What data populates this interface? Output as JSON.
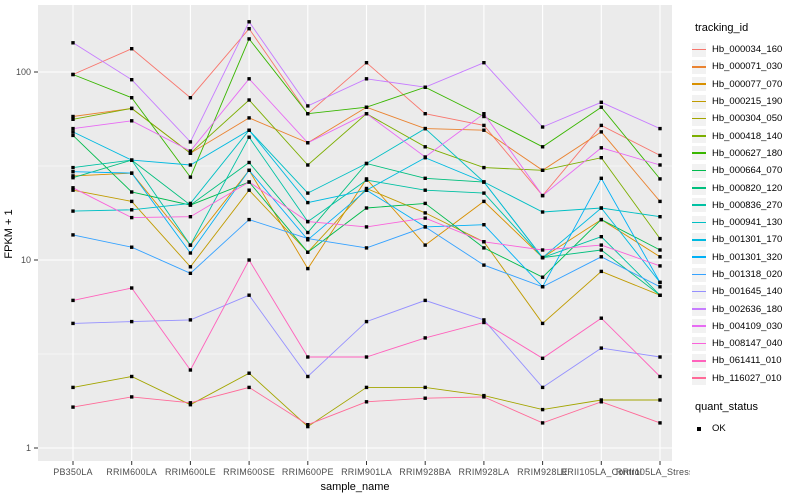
{
  "chart_data": {
    "type": "line",
    "title": "",
    "xlabel": "sample_name",
    "ylabel": "FPKM + 1",
    "x_categories": [
      "PB350LA",
      "RRIM600LA",
      "RRIM600LE",
      "RRIM600SE",
      "RRIM600PE",
      "RRIM901LA",
      "RRIM928BA",
      "RRIM928LA",
      "RRIM928LE",
      "RRII105LA_Control",
      "RRII105LA_Stressed"
    ],
    "y_scale": "log10",
    "y_ticks": [
      1,
      10,
      100
    ],
    "y_minor_ticks": [
      3.162,
      31.62
    ],
    "ylim": [
      1,
      230
    ],
    "grid": true,
    "legend_position": "right",
    "point_shape": "filled-black-square",
    "series": [
      {
        "name": "Hb_000034_160",
        "color": "#F8766D",
        "values": [
          97,
          133,
          73,
          170,
          60,
          112,
          60,
          52,
          22,
          52,
          36
        ]
      },
      {
        "name": "Hb_000071_030",
        "color": "#EA8331",
        "values": [
          58,
          64,
          37,
          57,
          42,
          65,
          50,
          49,
          30,
          48,
          20.5
        ]
      },
      {
        "name": "Hb_000077_070",
        "color": "#D89000",
        "values": [
          28,
          29,
          12,
          30,
          9,
          27,
          12,
          20.5,
          10.3,
          16.4,
          10.4
        ]
      },
      {
        "name": "Hb_000215_190",
        "color": "#C09B00",
        "values": [
          23.5,
          20.5,
          9.2,
          23.5,
          11,
          24,
          17.8,
          12.5,
          4.6,
          8.7,
          6.5
        ]
      },
      {
        "name": "Hb_000304_050",
        "color": "#A3A500",
        "values": [
          2.1,
          2.4,
          1.7,
          2.5,
          1.3,
          2.1,
          2.1,
          1.9,
          1.6,
          1.8,
          1.8
        ]
      },
      {
        "name": "Hb_000418_140",
        "color": "#7CAE00",
        "values": [
          56,
          64,
          37,
          71,
          32,
          60,
          40,
          31,
          30,
          35,
          13
        ]
      },
      {
        "name": "Hb_000627_180",
        "color": "#39B600",
        "values": [
          97,
          73,
          27.6,
          150,
          60,
          65,
          83,
          58,
          40,
          65,
          27
        ]
      },
      {
        "name": "Hb_000664_070",
        "color": "#00BB4E",
        "values": [
          46,
          23,
          19.6,
          26,
          11,
          18.9,
          20,
          11.6,
          8.1,
          16.4,
          11.3
        ]
      },
      {
        "name": "Hb_000820_120",
        "color": "#00BF7D",
        "values": [
          27.4,
          34,
          19.6,
          33,
          14,
          32.6,
          27.2,
          26,
          10.3,
          11.3,
          6.5
        ]
      },
      {
        "name": "Hb_000836_270",
        "color": "#00C1A3",
        "values": [
          31,
          34,
          12,
          45,
          16,
          26.6,
          23.5,
          22.7,
          10.3,
          13.3,
          6.5
        ]
      },
      {
        "name": "Hb_000941_130",
        "color": "#00BFC4",
        "values": [
          18.2,
          18.5,
          20,
          49,
          22.7,
          32.6,
          50,
          26,
          18,
          18.9,
          17
        ]
      },
      {
        "name": "Hb_001301_170",
        "color": "#00BAE0",
        "values": [
          48,
          34,
          32,
          49,
          20.2,
          23.5,
          35,
          26,
          10.3,
          18.9,
          7.6
        ]
      },
      {
        "name": "Hb_001301_320",
        "color": "#00B0F6",
        "values": [
          29.5,
          29,
          10.9,
          30,
          12.8,
          23.5,
          15,
          15.4,
          7.2,
          27.2,
          7.6
        ]
      },
      {
        "name": "Hb_001318_020",
        "color": "#35A2FF",
        "values": [
          13.6,
          11.7,
          8.5,
          16.4,
          13,
          11.6,
          15,
          9.4,
          7.2,
          10.4,
          7.2
        ]
      },
      {
        "name": "Hb_001645_140",
        "color": "#9590FF",
        "values": [
          4.6,
          4.7,
          4.8,
          6.5,
          2.4,
          4.7,
          6.1,
          4.8,
          2.1,
          3.4,
          3.05
        ]
      },
      {
        "name": "Hb_002636_180",
        "color": "#C77CFF",
        "values": [
          143,
          91,
          42.5,
          185,
          66,
          92,
          83,
          112,
          51,
          69,
          50
        ]
      },
      {
        "name": "Hb_004109_030",
        "color": "#E76BF3",
        "values": [
          50,
          55,
          38,
          92,
          42,
          60,
          35.3,
          60,
          22,
          39.5,
          32
        ]
      },
      {
        "name": "Hb_008147_040",
        "color": "#FA62DB",
        "values": [
          24.2,
          16.8,
          17,
          26,
          16,
          15,
          16.7,
          12.5,
          11.3,
          12,
          9.3
        ]
      },
      {
        "name": "Hb_061411_010",
        "color": "#FF62BC",
        "values": [
          6.1,
          7.1,
          2.6,
          10,
          3.05,
          3.05,
          3.85,
          4.65,
          3.0,
          4.9,
          2.4
        ]
      },
      {
        "name": "Hb_116027_010",
        "color": "#FF6A98",
        "values": [
          1.65,
          1.87,
          1.74,
          2.1,
          1.33,
          1.76,
          1.84,
          1.87,
          1.36,
          1.76,
          1.36
        ]
      }
    ]
  },
  "legend": {
    "tracking_title": "tracking_id",
    "quant_title": "quant_status",
    "quant_items": [
      {
        "label": "OK"
      }
    ]
  },
  "colors": {
    "panel_bg": "#EBEBEB",
    "grid": "#FFFFFF",
    "axis_text": "#4D4D4D",
    "axis_title": "#000000",
    "point": "#000000",
    "key_bg": "#F2F2F2",
    "page_bg": "#FFFFFF"
  }
}
